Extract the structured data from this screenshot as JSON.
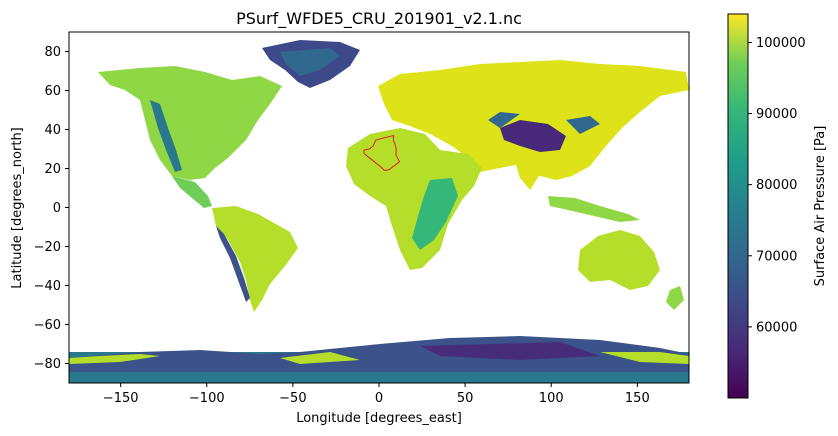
{
  "chart_data": {
    "type": "heatmap",
    "title": "PSurf_WFDE5_CRU_201901_v2.1.nc",
    "xlabel": "Longitude [degrees_east]",
    "ylabel": "Latitude [degrees_north]",
    "xlim": [
      -180,
      180
    ],
    "ylim": [
      -90,
      90
    ],
    "x_ticks": [
      -150,
      -100,
      -50,
      0,
      50,
      100,
      150
    ],
    "y_ticks": [
      80,
      60,
      40,
      20,
      0,
      -20,
      -40,
      -60,
      -80
    ],
    "colorbar": {
      "label": "Surface Air Pressure [Pa]",
      "range": [
        50000,
        104000
      ],
      "ticks": [
        60000,
        70000,
        80000,
        90000,
        100000
      ],
      "colormap": "viridis",
      "colors": [
        "#440154",
        "#3b528b",
        "#21918c",
        "#5ec962",
        "#fde725"
      ]
    },
    "outline": {
      "region": "Algeria",
      "color": "#e31a1c",
      "coords": [
        [
          -8.7,
          27.7
        ],
        [
          -8.7,
          29.5
        ],
        [
          -5.5,
          30.0
        ],
        [
          -3.5,
          31.5
        ],
        [
          -1.8,
          34.6
        ],
        [
          2.0,
          35.5
        ],
        [
          8.5,
          36.9
        ],
        [
          8.3,
          34.5
        ],
        [
          9.5,
          32.0
        ],
        [
          10.0,
          30.0
        ],
        [
          9.8,
          27.0
        ],
        [
          11.9,
          23.5
        ],
        [
          6.0,
          19.5
        ],
        [
          4.2,
          19.1
        ],
        [
          3.2,
          19.0
        ],
        [
          1.0,
          20.8
        ],
        [
          -4.8,
          25.0
        ],
        [
          -8.7,
          27.7
        ]
      ]
    },
    "grid": false
  }
}
